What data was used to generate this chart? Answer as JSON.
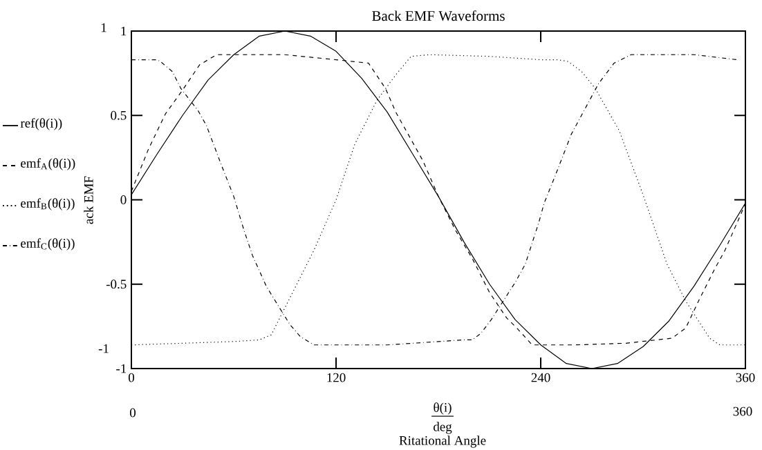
{
  "chart_data": {
    "type": "line",
    "title": "Back EMF Waveforms",
    "xlabel": "Ritational Angle",
    "ylabel": "ack EMF",
    "xlim": [
      0,
      360
    ],
    "ylim": [
      -1,
      1
    ],
    "xticks": [
      0,
      120,
      240,
      360
    ],
    "yticks": [
      -1,
      -0.5,
      0,
      0.5,
      1
    ],
    "legend": "left",
    "color": "#000000",
    "annotations": [
      "0",
      "360",
      "1",
      "-1",
      "θ(i)",
      "deg"
    ],
    "series": [
      {
        "name": "ref(θ(i))",
        "line_style": "solid",
        "x": [
          0,
          15,
          30,
          45,
          60,
          75,
          90,
          105,
          120,
          135,
          150,
          165,
          180,
          195,
          210,
          225,
          240,
          255,
          270,
          285,
          300,
          315,
          330,
          345,
          360
        ],
        "values": [
          0.03,
          0.27,
          0.5,
          0.71,
          0.86,
          0.97,
          1,
          0.97,
          0.88,
          0.72,
          0.52,
          0.27,
          0.02,
          -0.25,
          -0.5,
          -0.71,
          -0.86,
          -0.97,
          -1,
          -0.97,
          -0.87,
          -0.72,
          -0.51,
          -0.27,
          -0.02
        ]
      },
      {
        "name": "emf$_{A}$(θ(i))",
        "line_style": "dashed",
        "x": [
          0,
          10,
          20,
          30,
          40,
          50,
          60,
          90,
          120,
          139,
          149,
          155,
          171,
          180,
          190,
          200,
          210,
          220,
          226,
          235,
          260,
          290,
          317,
          325,
          333,
          342,
          348,
          358,
          360
        ],
        "values": [
          0.05,
          0.3,
          0.51,
          0.65,
          0.8,
          0.86,
          0.86,
          0.86,
          0.83,
          0.81,
          0.66,
          0.52,
          0.23,
          0.02,
          -0.18,
          -0.35,
          -0.55,
          -0.7,
          -0.76,
          -0.86,
          -0.86,
          -0.85,
          -0.82,
          -0.76,
          -0.59,
          -0.41,
          -0.3,
          -0.07,
          -0.02
        ]
      },
      {
        "name": "emf$_{B}$(θ(i))",
        "line_style": "dotted",
        "x": [
          0,
          30,
          60,
          75,
          82,
          91,
          107,
          120,
          131,
          144,
          155,
          164,
          175,
          210,
          240,
          250,
          256,
          264,
          272,
          286,
          300,
          314,
          325,
          339,
          345,
          360
        ],
        "values": [
          -0.86,
          -0.85,
          -0.84,
          -0.83,
          -0.8,
          -0.62,
          -0.3,
          0,
          0.33,
          0.59,
          0.74,
          0.85,
          0.86,
          0.85,
          0.83,
          0.83,
          0.82,
          0.76,
          0.66,
          0.41,
          0.03,
          -0.38,
          -0.6,
          -0.82,
          -0.86,
          -0.86
        ]
      },
      {
        "name": "emf$_{C}$(θ(i))",
        "line_style": "dashdot",
        "x": [
          0,
          15,
          17,
          24,
          29,
          39,
          44,
          53,
          60,
          66,
          71,
          79,
          85,
          93,
          99,
          107,
          150,
          195,
          200,
          205,
          211,
          225,
          231,
          239,
          242,
          248,
          258,
          266,
          274,
          283,
          293,
          330,
          355
        ],
        "values": [
          0.83,
          0.83,
          0.82,
          0.76,
          0.66,
          0.53,
          0.44,
          0.2,
          0.02,
          -0.18,
          -0.33,
          -0.51,
          -0.61,
          -0.74,
          -0.81,
          -0.86,
          -0.86,
          -0.83,
          -0.83,
          -0.79,
          -0.71,
          -0.49,
          -0.38,
          -0.13,
          -0.02,
          0.13,
          0.39,
          0.54,
          0.69,
          0.81,
          0.86,
          0.86,
          0.83
        ]
      }
    ]
  }
}
